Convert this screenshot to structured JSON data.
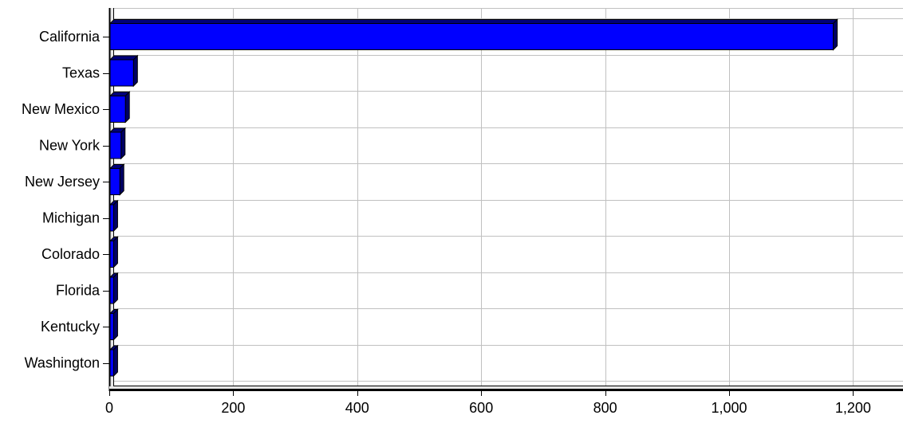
{
  "chart_data": {
    "type": "bar",
    "orientation": "horizontal",
    "categories": [
      "California",
      "Texas",
      "New Mexico",
      "New York",
      "New Jersey",
      "Michigan",
      "Colorado",
      "Florida",
      "Kentucky",
      "Washington"
    ],
    "values": [
      1168,
      39,
      26,
      19,
      17,
      7,
      7,
      7,
      7,
      7
    ],
    "title": "",
    "xlabel": "",
    "ylabel": "",
    "xlim": [
      0,
      1300
    ],
    "x_ticks": [
      0,
      200,
      400,
      600,
      800,
      1000,
      1200
    ],
    "x_tick_labels": [
      "0",
      "200",
      "400",
      "600",
      "800",
      "1,000",
      "1,200"
    ],
    "grid": true,
    "legend": "none",
    "bar_style": "3d",
    "colors": {
      "bar_front": "#0000ff",
      "bar_top": "#00007a",
      "bar_side": "#000064",
      "bar_outline": "#000000",
      "grid": "#c0c0c0",
      "axis": "#000000"
    }
  }
}
